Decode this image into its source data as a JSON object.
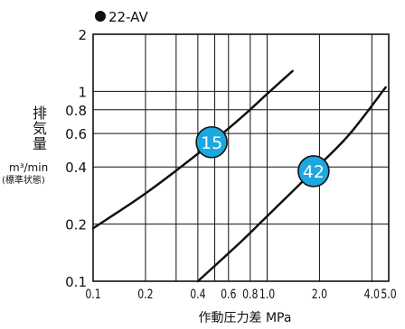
{
  "chart_data": {
    "type": "line",
    "title": "●22-AV",
    "xlabel": "作動圧力差 MPa",
    "ylabel": [
      "排",
      "気",
      "量"
    ],
    "yunit": "m³/min",
    "ynote": "(標準状態)",
    "xscale": "log",
    "yscale": "log",
    "xlim": [
      0.1,
      5.0
    ],
    "ylim": [
      0.1,
      2
    ],
    "grid": true,
    "x_ticks": [
      {
        "v": 0.1,
        "label": "0.1"
      },
      {
        "v": 0.2,
        "label": "0.2"
      },
      {
        "v": 0.4,
        "label": "0.4"
      },
      {
        "v": 0.6,
        "label": "0.6"
      },
      {
        "v": 0.8,
        "label": "0.8"
      },
      {
        "v": 1.0,
        "label": "1.0"
      },
      {
        "v": 2.0,
        "label": "2.0"
      },
      {
        "v": 4.0,
        "label": "4.0"
      },
      {
        "v": 5.0,
        "label": "5.0"
      }
    ],
    "x_minor_grid": [
      0.3,
      0.5
    ],
    "y_ticks": [
      {
        "v": 0.1,
        "label": "0.1"
      },
      {
        "v": 0.2,
        "label": "0.2"
      },
      {
        "v": 0.4,
        "label": "0.4"
      },
      {
        "v": 0.6,
        "label": "0.6"
      },
      {
        "v": 0.8,
        "label": "0.8"
      },
      {
        "v": 1,
        "label": "1"
      },
      {
        "v": 2,
        "label": "2"
      }
    ],
    "series": [
      {
        "name": "15",
        "x": [
          0.1,
          0.2,
          0.4,
          0.7,
          1.0,
          1.4
        ],
        "y": [
          0.19,
          0.29,
          0.47,
          0.72,
          0.97,
          1.28
        ],
        "label_at": [
          0.48,
          0.54
        ]
      },
      {
        "name": "42",
        "x": [
          0.4,
          0.7,
          1.0,
          2.0,
          3.0,
          4.8
        ],
        "y": [
          0.1,
          0.16,
          0.22,
          0.41,
          0.6,
          1.05
        ],
        "label_at": [
          1.85,
          0.38
        ]
      }
    ],
    "colors": {
      "line": "#111111",
      "grid": "#111111",
      "badge": "#1ba8e0",
      "badge_text": "#ffffff"
    }
  }
}
